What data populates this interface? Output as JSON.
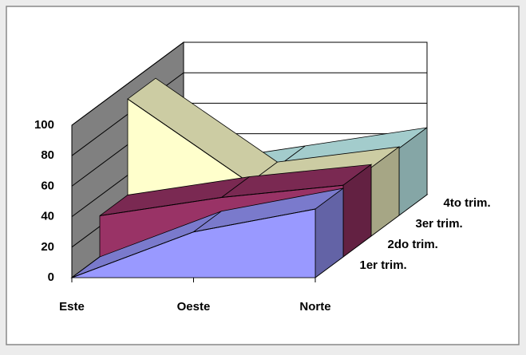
{
  "chart_data": {
    "type": "area3d",
    "categories": [
      "Este",
      "Oeste",
      "Norte"
    ],
    "series": [
      {
        "name": "1er trim.",
        "color": "#9999ff",
        "values": [
          0,
          30,
          45
        ]
      },
      {
        "name": "2do trim.",
        "color": "#993366",
        "values": [
          27,
          39,
          47
        ]
      },
      {
        "name": "3er trim.",
        "color": "#ffffcc",
        "values": [
          90,
          35,
          45
        ]
      },
      {
        "name": "4to trim.",
        "color": "#ccffff",
        "values": [
          20,
          32,
          44
        ]
      }
    ],
    "ylim": [
      0,
      100
    ],
    "yticks": [
      0,
      20,
      40,
      60,
      80,
      100
    ],
    "grid": true
  }
}
